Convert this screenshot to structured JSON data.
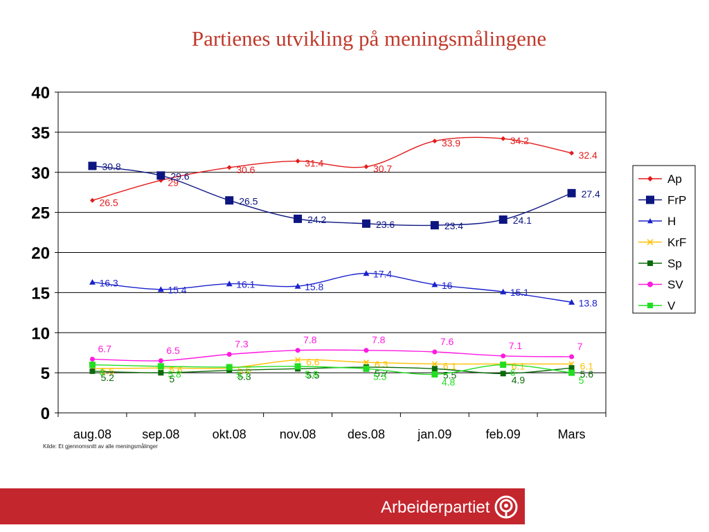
{
  "slide": {
    "title": "Partienes utvikling på meningsmålingene",
    "source_note": "Kilde: Et gjennomsnitt av alle meningsmålinger"
  },
  "footer": {
    "brand": "Arbeiderpartiet",
    "bar_color": "#c4262e",
    "logo_icon": "rose-icon"
  },
  "chart_data": {
    "type": "line",
    "categories": [
      "aug.08",
      "sep.08",
      "okt.08",
      "nov.08",
      "des.08",
      "jan.09",
      "feb.09",
      "Mars"
    ],
    "ylim": [
      0,
      40
    ],
    "yticks": [
      0,
      5,
      10,
      15,
      20,
      25,
      30,
      35,
      40
    ],
    "grid": true,
    "legend_position": "right",
    "series": [
      {
        "name": "Ap",
        "color": "#e31b1b",
        "marker": "diamond",
        "values": [
          26.5,
          29,
          30.6,
          31.4,
          30.7,
          33.9,
          34.2,
          32.4
        ]
      },
      {
        "name": "FrP",
        "color": "#0d1580",
        "marker": "square",
        "values": [
          30.8,
          29.6,
          26.5,
          24.2,
          23.6,
          23.4,
          24.1,
          27.4
        ]
      },
      {
        "name": "H",
        "color": "#1a22cc",
        "marker": "triangle",
        "values": [
          16.3,
          15.4,
          16.1,
          15.8,
          17.4,
          16,
          15.1,
          13.8
        ]
      },
      {
        "name": "KrF",
        "color": "#ffc000",
        "marker": "x",
        "values": [
          5.5,
          5.6,
          5.6,
          6.6,
          6.3,
          6.1,
          6.1,
          6.1
        ]
      },
      {
        "name": "Sp",
        "color": "#0b6b0b",
        "marker": "square",
        "values": [
          5.2,
          5,
          5.3,
          5.5,
          5.7,
          5.5,
          4.9,
          5.6
        ]
      },
      {
        "name": "SV",
        "color": "#ff1ae0",
        "marker": "circle",
        "values": [
          6.7,
          6.5,
          7.3,
          7.8,
          7.8,
          7.6,
          7.1,
          7
        ]
      },
      {
        "name": "V",
        "color": "#22dd22",
        "marker": "square",
        "values": [
          6,
          5.8,
          5.7,
          5.8,
          5.5,
          4.8,
          6,
          5
        ]
      }
    ]
  }
}
